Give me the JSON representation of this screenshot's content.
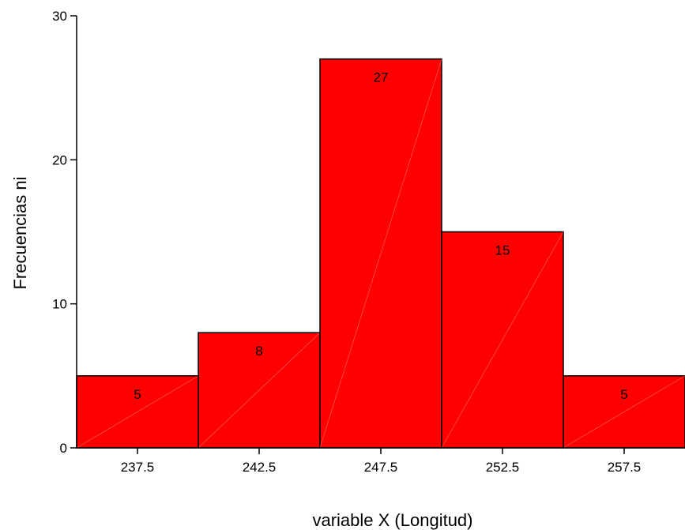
{
  "chart_data": {
    "type": "bar",
    "categories": [
      "237.5",
      "242.5",
      "247.5",
      "252.5",
      "257.5"
    ],
    "values": [
      5,
      8,
      27,
      15,
      5
    ],
    "data_labels": [
      "5",
      "8",
      "27",
      "15",
      "5"
    ],
    "title": "",
    "xlabel": "variable X (Longitud)",
    "ylabel": "Frecuencias ni",
    "ylim": [
      0,
      30
    ],
    "yticks": [
      "0",
      "10",
      "20",
      "30"
    ],
    "grid": false,
    "legend": "none",
    "bar_color": "#ff0000",
    "edge_color": "#000000"
  }
}
